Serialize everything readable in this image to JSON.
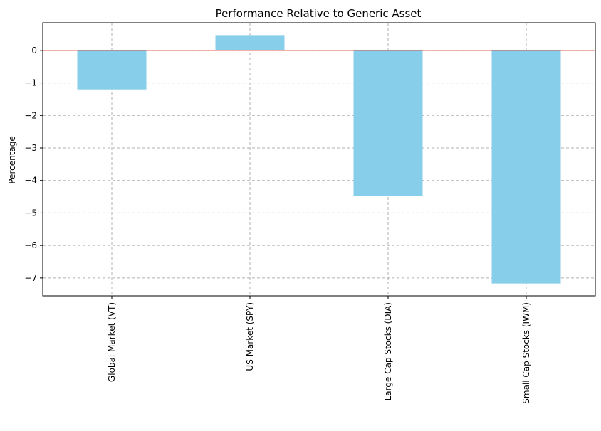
{
  "chart_data": {
    "type": "bar",
    "title": "Performance Relative to Generic Asset",
    "xlabel": "",
    "ylabel": "Percentage",
    "categories": [
      "Global Market (VT)",
      "US Market (SPY)",
      "Large Cap Stocks (DIA)",
      "Small Cap Stocks (IWM)"
    ],
    "values": [
      -1.2,
      0.47,
      -4.47,
      -7.17
    ],
    "ylim": [
      -7.55,
      0.85
    ],
    "yticks": [
      0,
      -1,
      -2,
      -3,
      -4,
      -5,
      -6,
      -7
    ],
    "ytick_labels": [
      "0",
      "−1",
      "−2",
      "−3",
      "−4",
      "−5",
      "−6",
      "−7"
    ],
    "grid": true,
    "reference_line": 0,
    "colors": {
      "bar": "#87ceeb",
      "reference_line": "#e8321e",
      "grid": "#b0b0b0",
      "axes": "#000000"
    }
  }
}
